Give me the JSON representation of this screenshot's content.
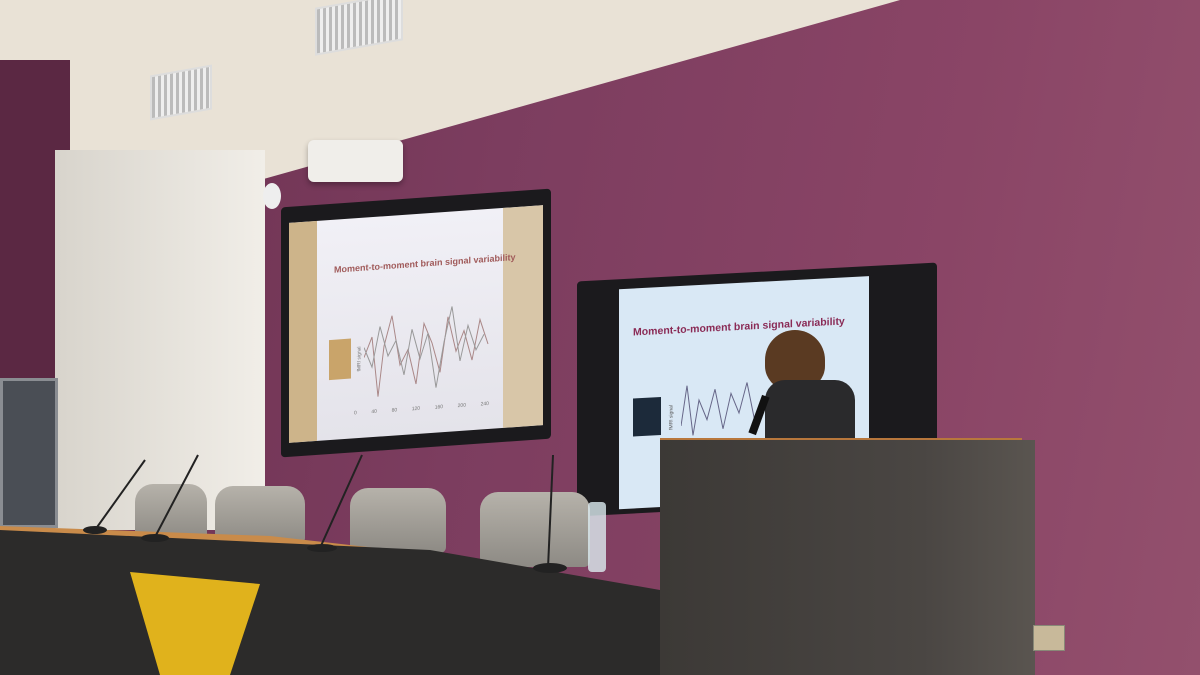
{
  "slide": {
    "title": "Moment-to-moment brain signal variability",
    "ylabel": "fMRI signal",
    "xticks": [
      "0",
      "40",
      "80",
      "120",
      "160",
      "200",
      "240"
    ]
  },
  "colors": {
    "wall": "#7c3d5f",
    "podium_top": "#b8773c",
    "table_panel": "#e0b21c"
  }
}
